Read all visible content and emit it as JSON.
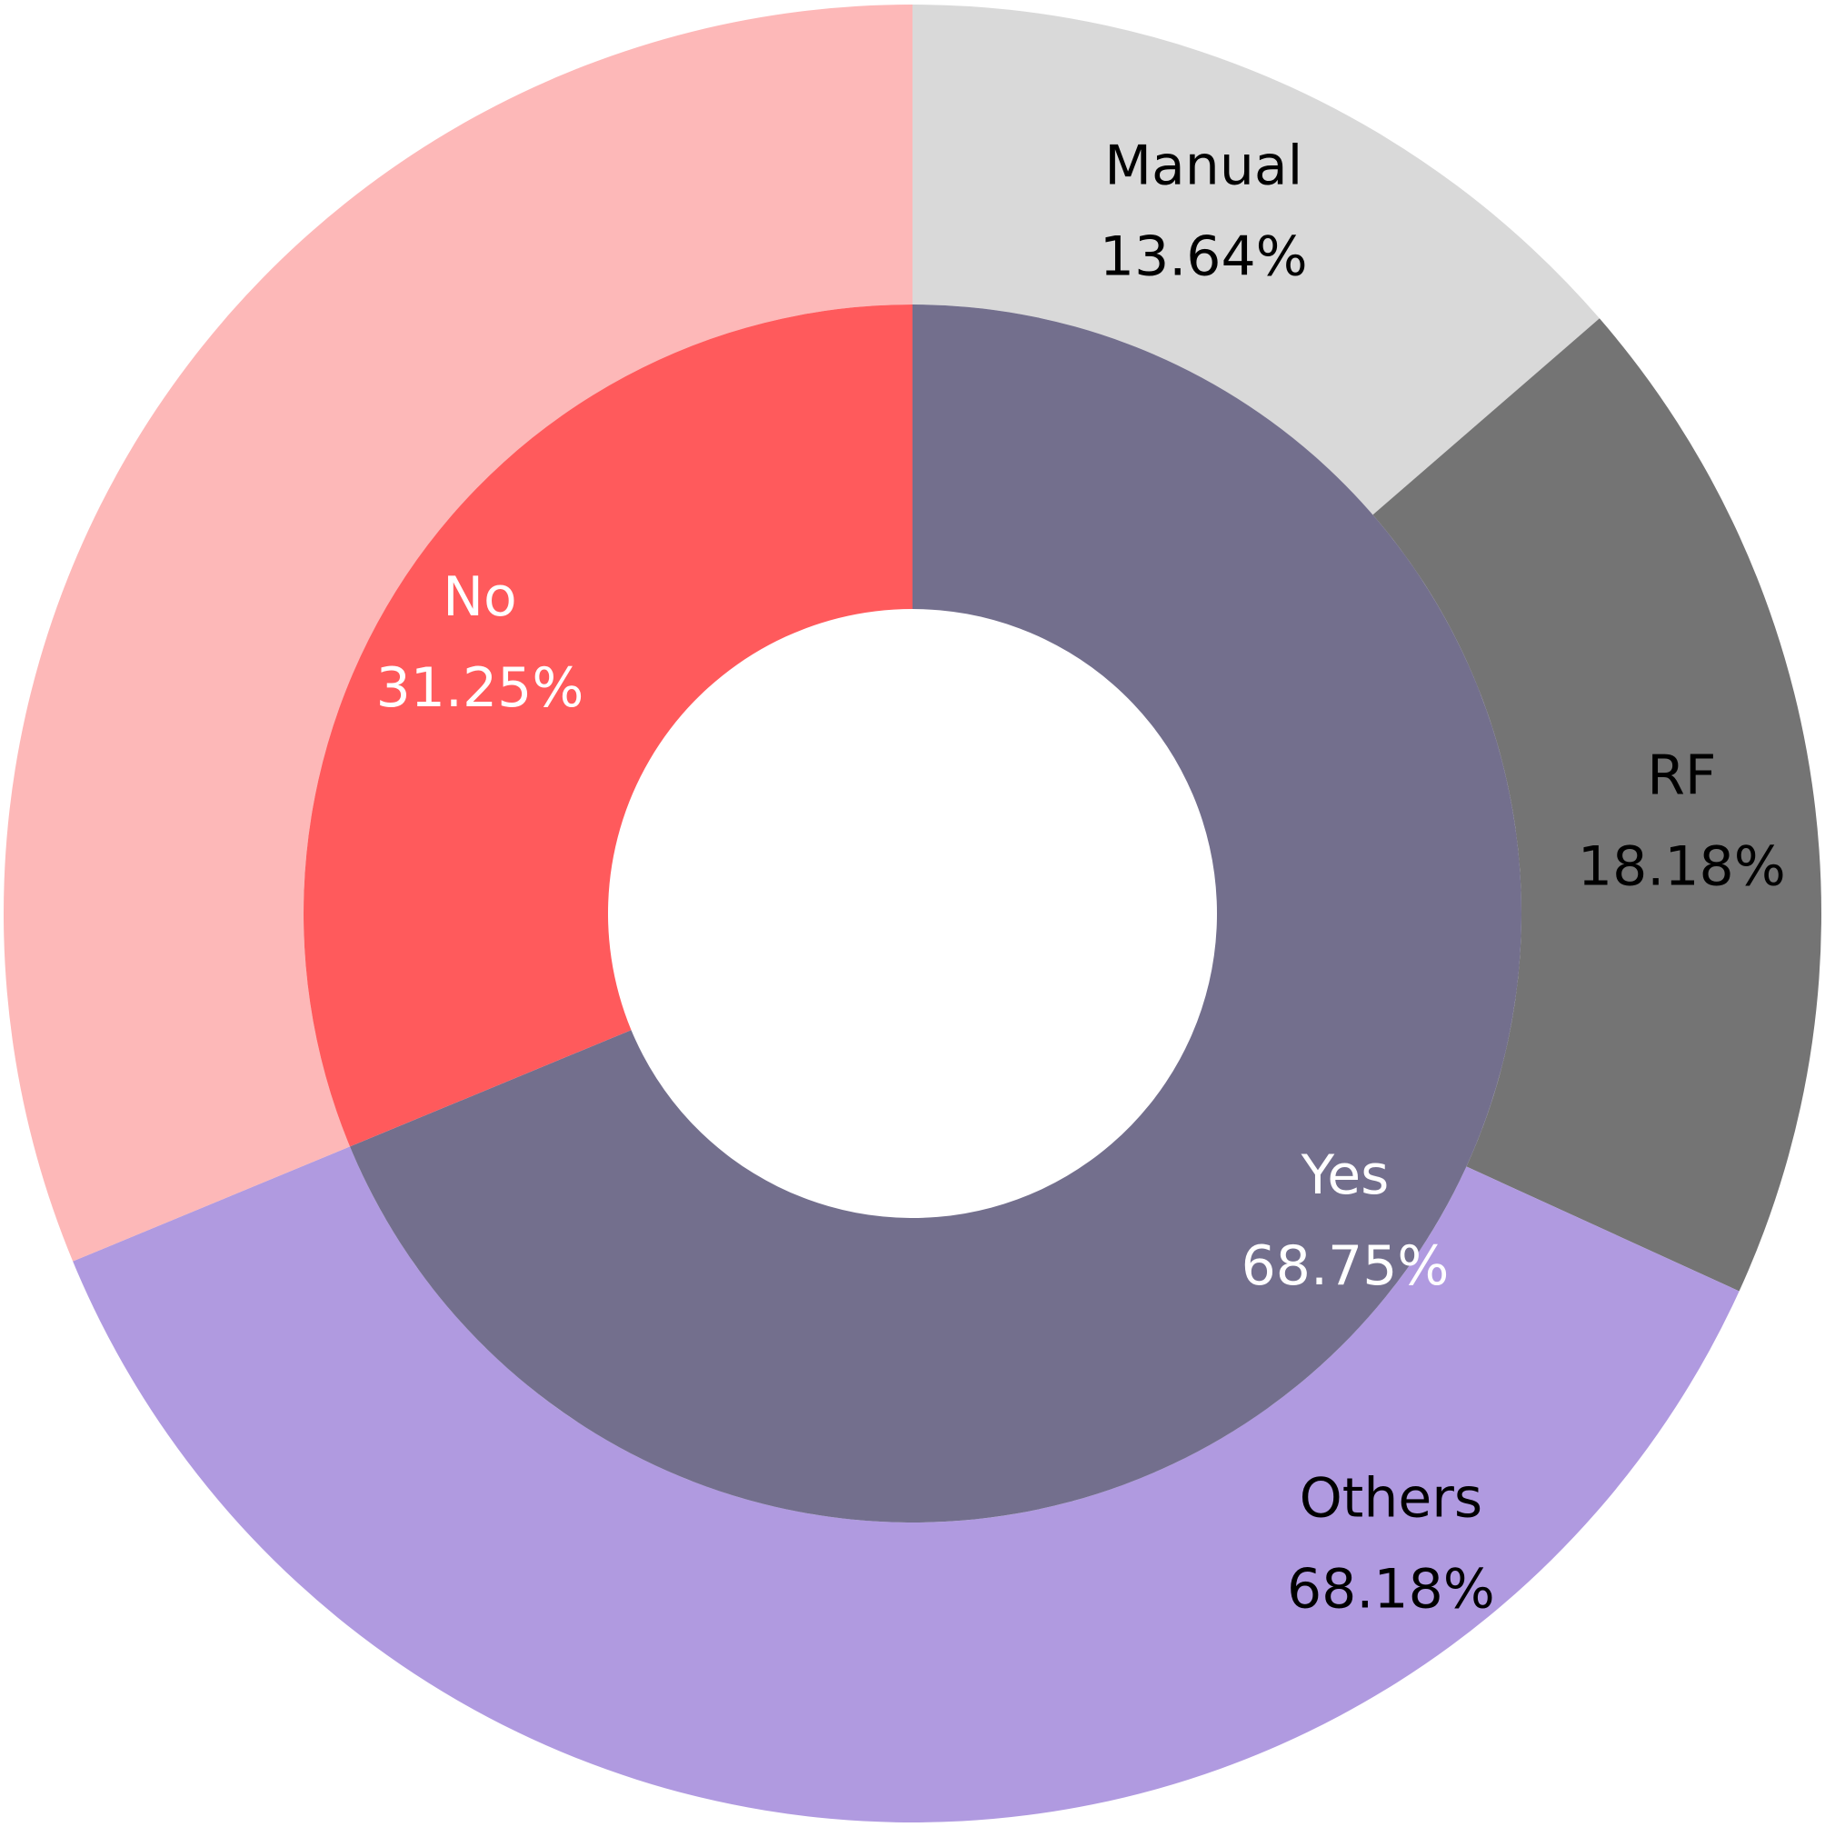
{
  "chart_data": {
    "type": "pie",
    "title": "",
    "inner": {
      "slices": [
        {
          "label": "Yes",
          "value": 68.75,
          "value_text": "68.75%",
          "color": "#736f8d",
          "text_color": "#ffffff"
        },
        {
          "label": "No",
          "value": 31.25,
          "value_text": "31.25%",
          "color": "#ff5a5c",
          "text_color": "#ffffff"
        }
      ]
    },
    "outer": {
      "slices": [
        {
          "label": "RF",
          "value": 18.18,
          "value_text": "18.18%",
          "color": "#747474",
          "text_color": "#000000"
        },
        {
          "label": "Others",
          "value": 68.18,
          "value_text": "68.18%",
          "color": "#b09ae0",
          "text_color": "#000000",
          "note": "shared with inner No"
        },
        {
          "label": "",
          "value": 0,
          "value_text": "",
          "color": "#fdb8b8",
          "text_color": "#000000"
        },
        {
          "label": "Manual",
          "value": 13.64,
          "value_text": "13.64%",
          "color": "#d9d9d9",
          "text_color": "#000000"
        }
      ]
    }
  }
}
